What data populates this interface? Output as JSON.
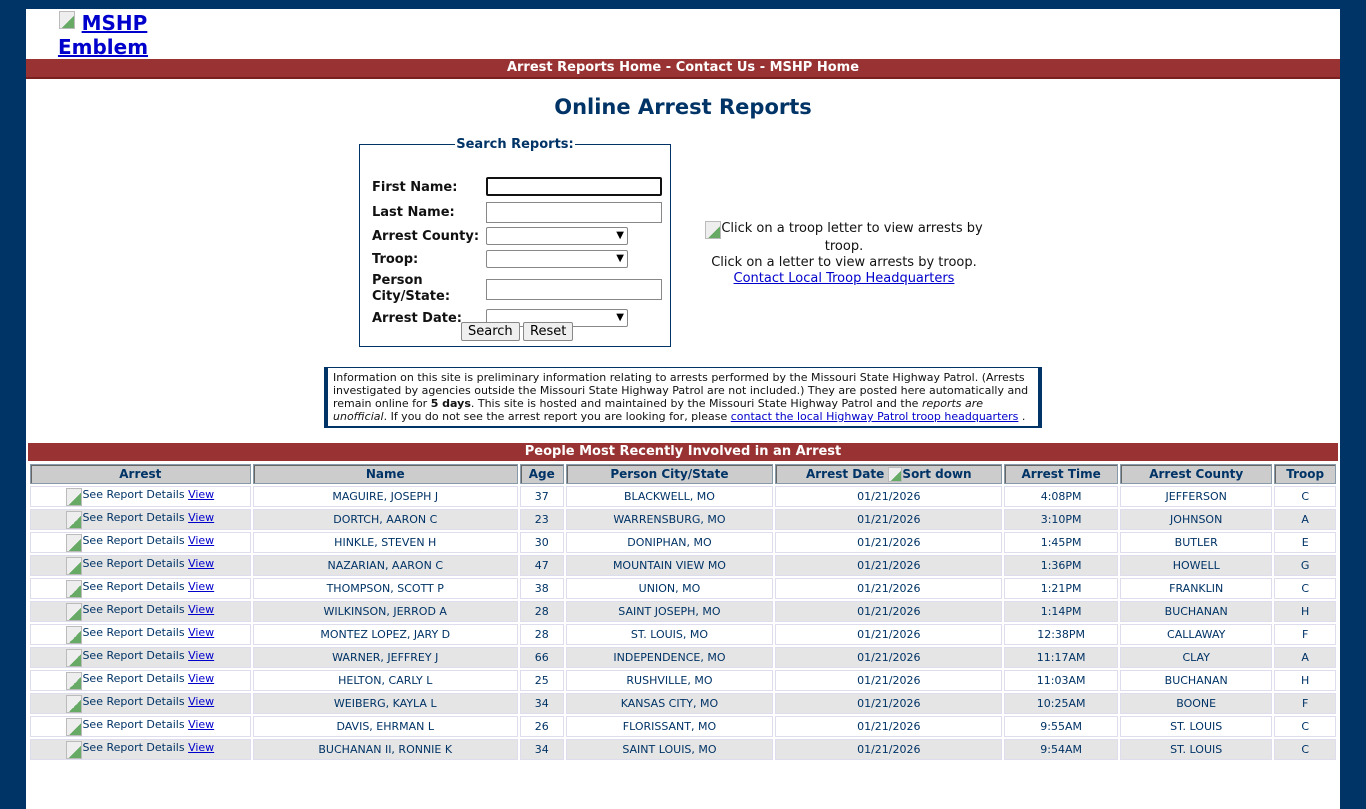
{
  "logo": {
    "alt": "MSHP Emblem"
  },
  "nav": {
    "items": [
      "Arrest Reports Home",
      "Contact Us",
      "MSHP Home"
    ],
    "sep": " - "
  },
  "title": "Online Arrest Reports",
  "search": {
    "legend": "Search Reports:",
    "first_name": "First Name:",
    "last_name": "Last Name:",
    "county": "Arrest County:",
    "troop": "Troop:",
    "city": "Person City/State:",
    "date": "Arrest Date:",
    "search_btn": "Search",
    "reset_btn": "Reset"
  },
  "troop_map": {
    "alt": "Click on a troop letter to view arrests by troop.",
    "caption": "Click on a letter to view arrests by troop.",
    "link": "Contact Local Troop Headquarters"
  },
  "info": {
    "p1": "Information on this site is preliminary information relating to arrests performed by the Missouri State Highway Patrol. (Arrests investigated by agencies outside the Missouri State Highway Patrol are not included.) They are posted here automatically and remain online for ",
    "bold": "5 days",
    "p2": ". This site is hosted and maintained by the Missouri State Highway Patrol and the ",
    "italic": "reports are unofficial",
    "p3": ". If you do not see the arrest report you are looking for, please ",
    "link": "contact the local Highway Patrol troop headquarters",
    "p4": " ."
  },
  "table": {
    "title": "People Most Recently Involved in an Arrest",
    "headers": [
      "Arrest",
      "Name",
      "Age",
      "Person City/State",
      "Arrest Date",
      "Arrest Time",
      "Arrest County",
      "Troop"
    ],
    "sort_alt": "Sort down",
    "see_alt": "See Report Details",
    "view": "View",
    "rows": [
      [
        "MAGUIRE, JOSEPH J",
        "37",
        "BLACKWELL, MO",
        "01/21/2026",
        "4:08PM",
        "JEFFERSON",
        "C"
      ],
      [
        "DORTCH, AARON C",
        "23",
        "WARRENSBURG, MO",
        "01/21/2026",
        "3:10PM",
        "JOHNSON",
        "A"
      ],
      [
        "HINKLE, STEVEN H",
        "30",
        "DONIPHAN, MO",
        "01/21/2026",
        "1:45PM",
        "BUTLER",
        "E"
      ],
      [
        "NAZARIAN, AARON C",
        "47",
        "MOUNTAIN VIEW MO",
        "01/21/2026",
        "1:36PM",
        "HOWELL",
        "G"
      ],
      [
        "THOMPSON, SCOTT P",
        "38",
        "UNION, MO",
        "01/21/2026",
        "1:21PM",
        "FRANKLIN",
        "C"
      ],
      [
        "WILKINSON, JERROD A",
        "28",
        "SAINT JOSEPH, MO",
        "01/21/2026",
        "1:14PM",
        "BUCHANAN",
        "H"
      ],
      [
        "MONTEZ LOPEZ, JARY D",
        "28",
        "ST. LOUIS, MO",
        "01/21/2026",
        "12:38PM",
        "CALLAWAY",
        "F"
      ],
      [
        "WARNER, JEFFREY J",
        "66",
        "INDEPENDENCE, MO",
        "01/21/2026",
        "11:17AM",
        "CLAY",
        "A"
      ],
      [
        "HELTON, CARLY L",
        "25",
        "RUSHVILLE, MO",
        "01/21/2026",
        "11:03AM",
        "BUCHANAN",
        "H"
      ],
      [
        "WEIBERG, KAYLA L",
        "34",
        "KANSAS CITY, MO",
        "01/21/2026",
        "10:25AM",
        "BOONE",
        "F"
      ],
      [
        "DAVIS, EHRMAN L",
        "26",
        "FLORISSANT, MO",
        "01/21/2026",
        "9:55AM",
        "ST. LOUIS",
        "C"
      ],
      [
        "BUCHANAN II, RONNIE K",
        "34",
        "SAINT LOUIS, MO",
        "01/21/2026",
        "9:54AM",
        "ST. LOUIS",
        "C"
      ]
    ]
  }
}
